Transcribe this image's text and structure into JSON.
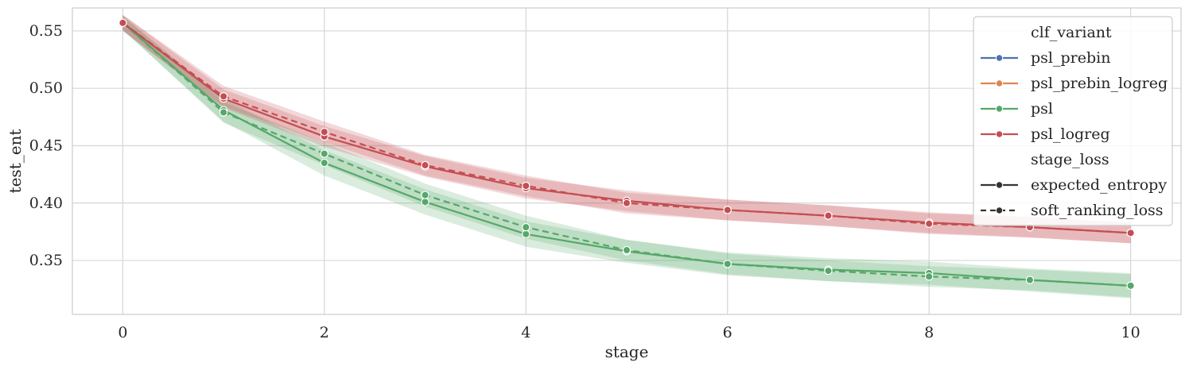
{
  "chart_data": {
    "type": "line",
    "xlabel": "stage",
    "ylabel": "test_ent",
    "xlim": [
      -0.5,
      10.5
    ],
    "ylim": [
      0.303,
      0.57
    ],
    "xticks": [
      0,
      2,
      4,
      6,
      8,
      10
    ],
    "xtick_labels": [
      "0",
      "2",
      "4",
      "6",
      "8",
      "10"
    ],
    "yticks": [
      0.35,
      0.4,
      0.45,
      0.5,
      0.55
    ],
    "ytick_labels": [
      "0.35",
      "0.40",
      "0.45",
      "0.50",
      "0.55"
    ],
    "grid": true,
    "legend_position": "top-right",
    "x": [
      0,
      1,
      2,
      3,
      4,
      5,
      6,
      7,
      8,
      9,
      10
    ],
    "series": [
      {
        "clf_variant": "psl",
        "stage_loss": "expected_entropy",
        "color": "#55a868",
        "dash": "solid",
        "values": [
          0.557,
          0.481,
          0.435,
          0.401,
          0.373,
          0.358,
          0.347,
          0.342,
          0.339,
          0.333,
          0.328
        ],
        "band": [
          0.006,
          0.01,
          0.011,
          0.011,
          0.011,
          0.01,
          0.01,
          0.01,
          0.01,
          0.01,
          0.011
        ]
      },
      {
        "clf_variant": "psl",
        "stage_loss": "soft_ranking_loss",
        "color": "#55a868",
        "dash": "dashed",
        "values": [
          0.557,
          0.479,
          0.443,
          0.407,
          0.379,
          0.359,
          0.347,
          0.341,
          0.336,
          0.333,
          0.328
        ],
        "band": [
          0.006,
          0.009,
          0.01,
          0.01,
          0.01,
          0.009,
          0.009,
          0.009,
          0.009,
          0.009,
          0.01
        ]
      },
      {
        "clf_variant": "psl_logreg",
        "stage_loss": "expected_entropy",
        "color": "#c44e52",
        "dash": "solid",
        "values": [
          0.557,
          0.491,
          0.458,
          0.432,
          0.413,
          0.402,
          0.394,
          0.389,
          0.383,
          0.379,
          0.374
        ],
        "band": [
          0.007,
          0.008,
          0.009,
          0.009,
          0.009,
          0.009,
          0.009,
          0.009,
          0.009,
          0.009,
          0.009
        ]
      },
      {
        "clf_variant": "psl_logreg",
        "stage_loss": "soft_ranking_loss",
        "color": "#c44e52",
        "dash": "dashed",
        "values": [
          0.557,
          0.493,
          0.462,
          0.433,
          0.415,
          0.4,
          0.394,
          0.389,
          0.382,
          0.379,
          0.374
        ],
        "band": [
          0.007,
          0.009,
          0.009,
          0.009,
          0.009,
          0.009,
          0.009,
          0.009,
          0.009,
          0.009,
          0.009
        ]
      }
    ],
    "legend": {
      "hue_title": "clf_variant",
      "hue_entries": [
        {
          "label": "psl_prebin",
          "color": "#4c72b0"
        },
        {
          "label": "psl_prebin_logreg",
          "color": "#dd8452"
        },
        {
          "label": "psl",
          "color": "#55a868"
        },
        {
          "label": "psl_logreg",
          "color": "#c44e52"
        }
      ],
      "style_title": "stage_loss",
      "style_entries": [
        {
          "label": "expected_entropy",
          "dash": "solid"
        },
        {
          "label": "soft_ranking_loss",
          "dash": "dashed"
        }
      ]
    }
  }
}
